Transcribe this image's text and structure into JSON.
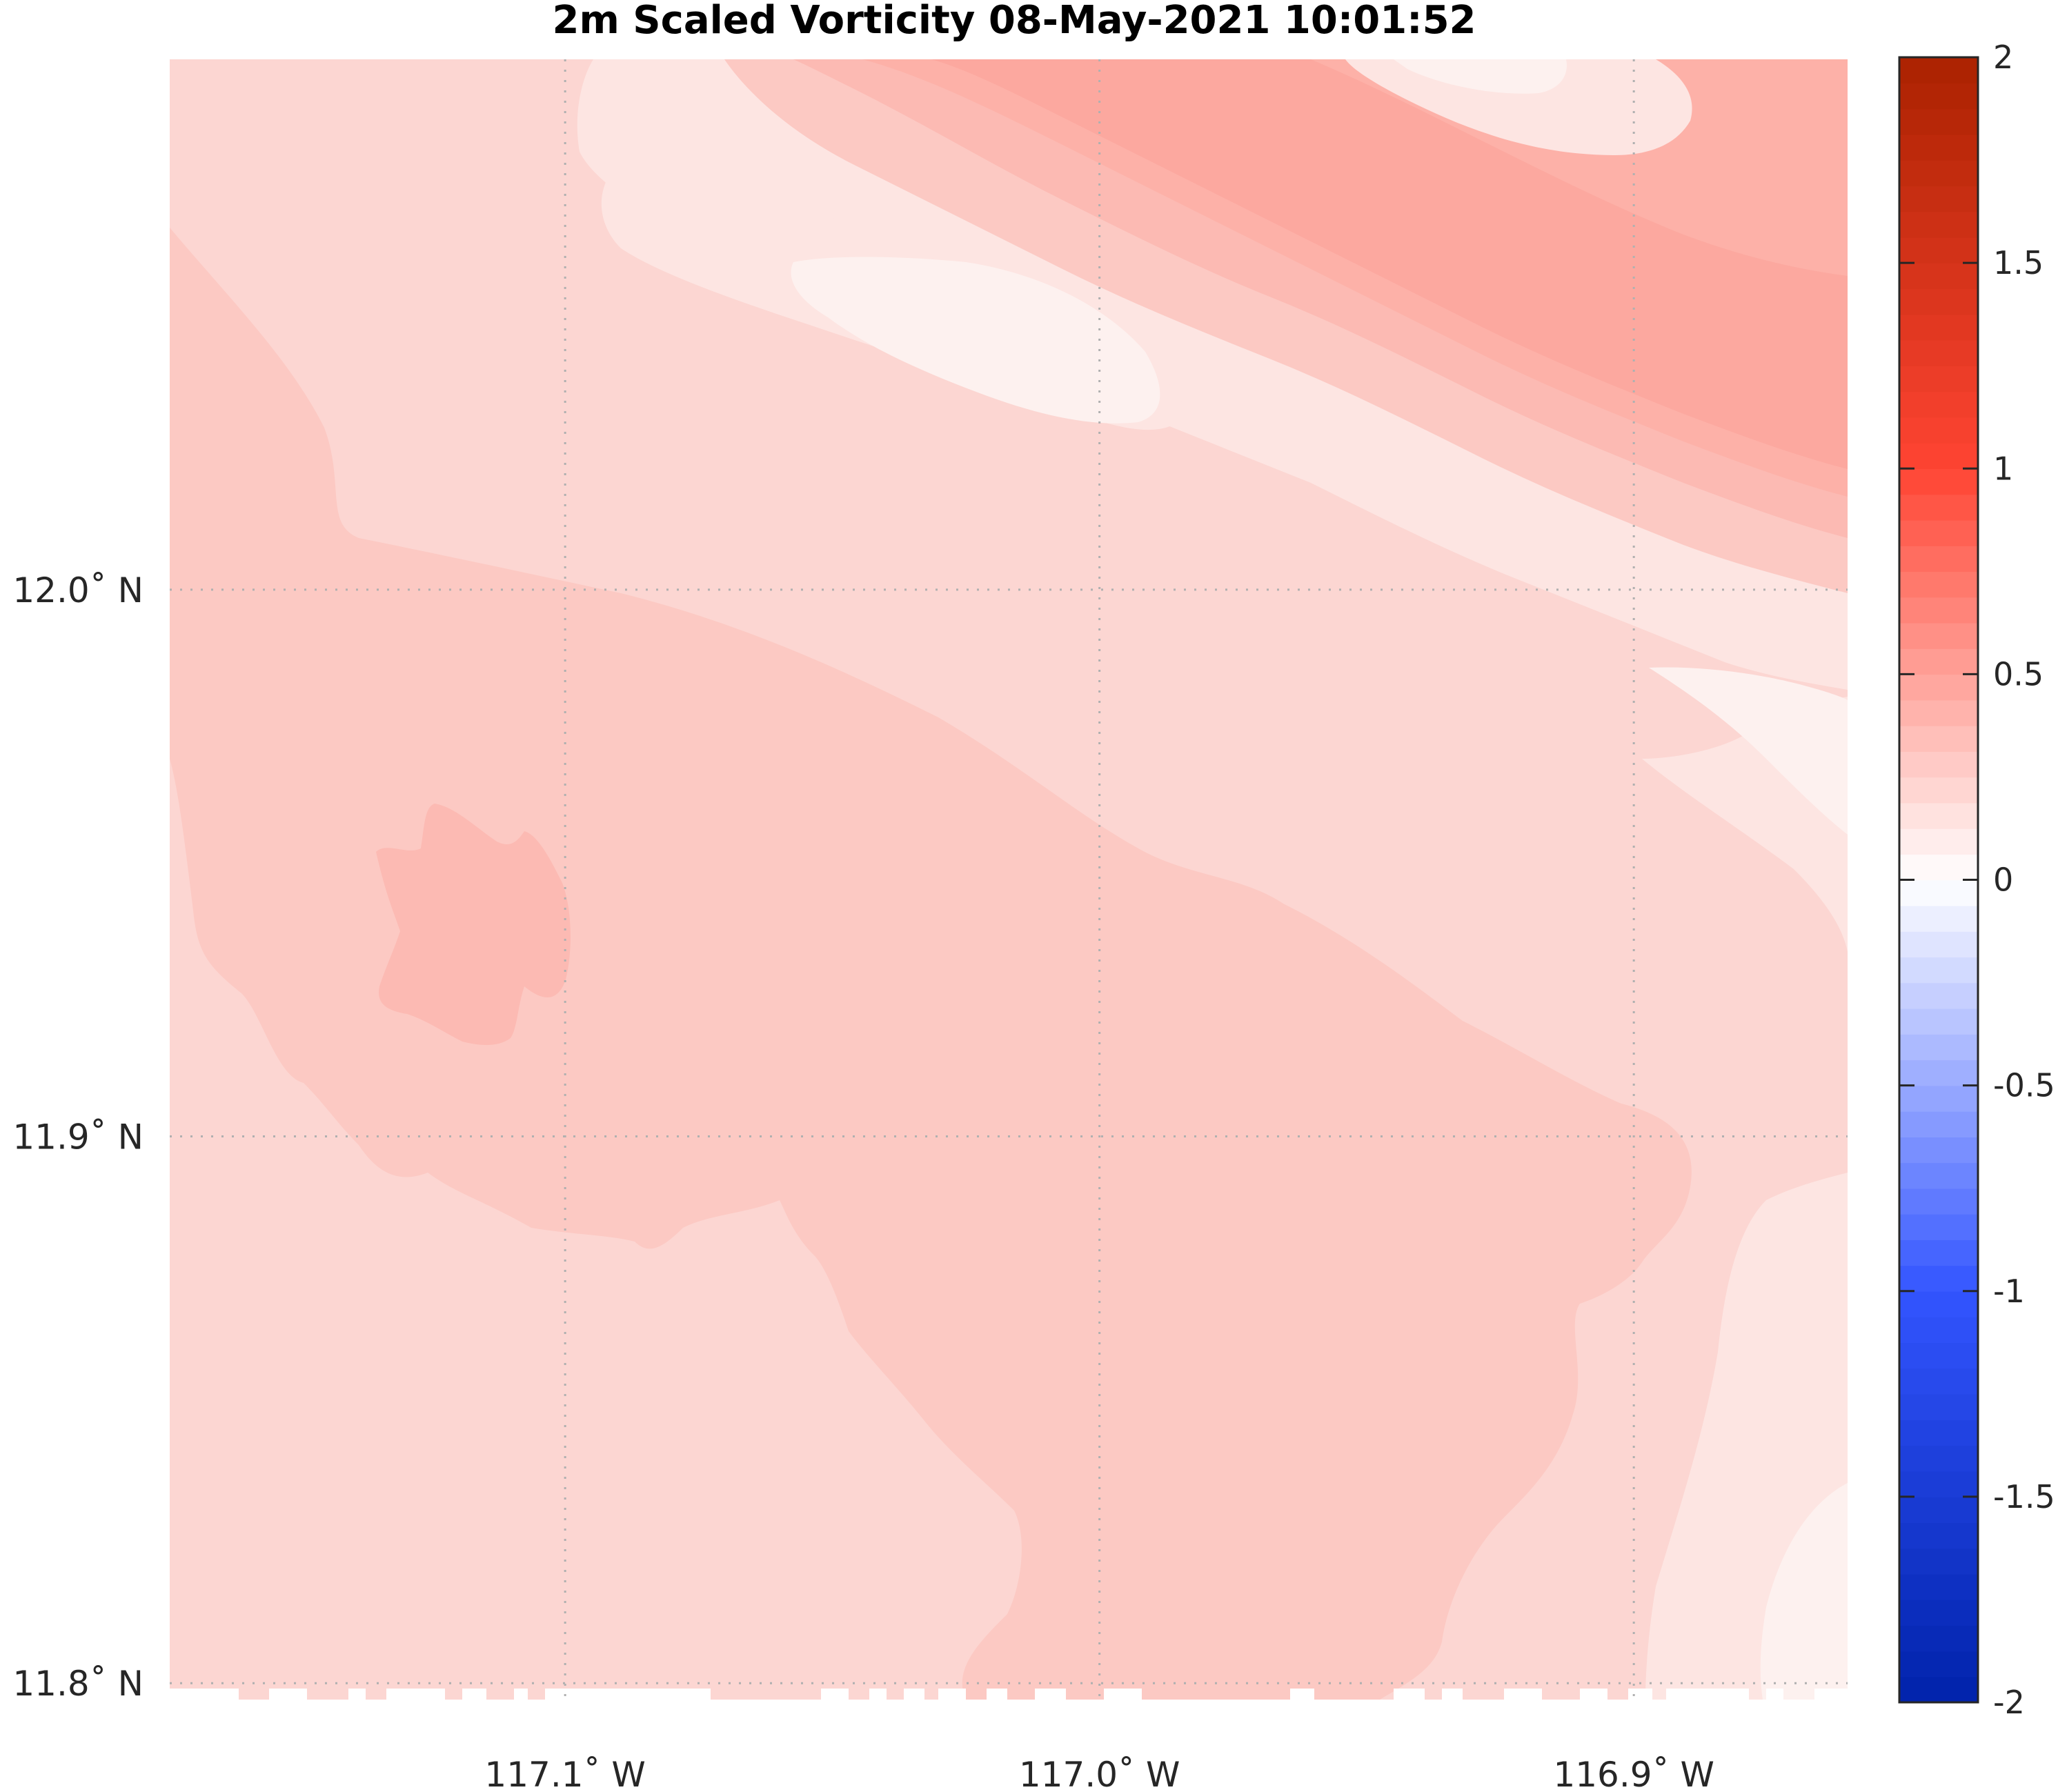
{
  "chart_data": {
    "type": "heatmap",
    "title": "2m Scaled Vorticity  08-May-2021 10:01:52",
    "x_ticks": [
      {
        "value": -117.1,
        "label": "117.1˚ W"
      },
      {
        "value": -117.0,
        "label": "117.0˚ W"
      },
      {
        "value": -116.9,
        "label": "116.9˚ W"
      }
    ],
    "y_ticks": [
      {
        "value": 12.0,
        "label": "12.0˚ N"
      },
      {
        "value": 11.9,
        "label": "11.9˚ N"
      },
      {
        "value": 11.8,
        "label": "11.8˚ N"
      }
    ],
    "xlim": [
      -117.174,
      -116.86
    ],
    "ylim": [
      11.797,
      12.097
    ],
    "grid": "dotted",
    "colorbar": {
      "limits": [
        -2,
        2
      ],
      "levels": 64,
      "ticks": [
        {
          "value": 2,
          "label": "2"
        },
        {
          "value": 1.5,
          "label": "1.5"
        },
        {
          "value": 1,
          "label": "1"
        },
        {
          "value": 0.5,
          "label": "0.5"
        },
        {
          "value": 0,
          "label": "0"
        },
        {
          "value": -0.5,
          "label": "-0.5"
        },
        {
          "value": -1,
          "label": "-1"
        },
        {
          "value": -1.5,
          "label": "-1.5"
        },
        {
          "value": -2,
          "label": "-2"
        }
      ],
      "colors": {
        "min": "#0022aa",
        "mid_low": "#3355ff",
        "zero": "#ffffff",
        "mid_high": "#ff4433",
        "max": "#aa2200"
      }
    },
    "field_levels": [
      {
        "value": 0.06,
        "color": "#fdf1ef"
      },
      {
        "value": 0.12,
        "color": "#fde5e2"
      },
      {
        "value": 0.19,
        "color": "#fcd6d2"
      },
      {
        "value": 0.25,
        "color": "#fcc9c3"
      },
      {
        "value": 0.31,
        "color": "#fcbab3"
      },
      {
        "value": 0.37,
        "color": "#fdb1a8"
      },
      {
        "value": 0.44,
        "color": "#fca89f"
      }
    ]
  }
}
